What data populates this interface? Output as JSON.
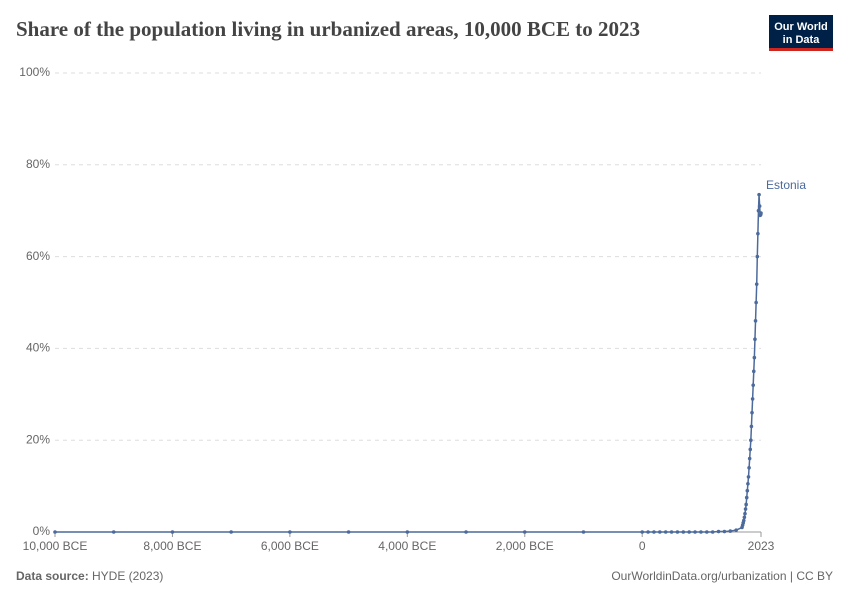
{
  "chart_data": {
    "type": "line",
    "title": "Share of the population living in urbanized areas, 10,000 BCE to 2023",
    "x": [
      -10000,
      -9000,
      -8000,
      -7000,
      -6000,
      -5000,
      -4000,
      -3000,
      -2000,
      -1000,
      0,
      100,
      200,
      300,
      400,
      500,
      600,
      700,
      800,
      900,
      1000,
      1100,
      1200,
      1300,
      1400,
      1500,
      1600,
      1700,
      1710,
      1720,
      1730,
      1740,
      1750,
      1760,
      1770,
      1780,
      1790,
      1800,
      1810,
      1820,
      1830,
      1840,
      1850,
      1860,
      1870,
      1880,
      1890,
      1900,
      1910,
      1920,
      1930,
      1940,
      1950,
      1960,
      1970,
      1980,
      1990,
      2000,
      2010,
      2020,
      2023
    ],
    "series": [
      {
        "name": "Estonia",
        "color": "#4c6a9c",
        "values": [
          0,
          0,
          0,
          0,
          0,
          0,
          0,
          0,
          0,
          0,
          0,
          0,
          0,
          0,
          0,
          0,
          0,
          0,
          0,
          0,
          0,
          0,
          0,
          0.1,
          0.1,
          0.2,
          0.4,
          1.0,
          1.5,
          2,
          2.5,
          3.2,
          4,
          5,
          6,
          7.5,
          9,
          10.5,
          12,
          14,
          16,
          18,
          20,
          23,
          26,
          29,
          32,
          35,
          38,
          42,
          46,
          50,
          54,
          60,
          65,
          70,
          73.5,
          71,
          69,
          69.2,
          69.5
        ]
      }
    ],
    "xlim": [
      -10000,
      2023
    ],
    "xticks": [
      {
        "value": -10000,
        "label": "10,000 BCE"
      },
      {
        "value": -8000,
        "label": "8,000 BCE"
      },
      {
        "value": -6000,
        "label": "6,000 BCE"
      },
      {
        "value": -4000,
        "label": "4,000 BCE"
      },
      {
        "value": -2000,
        "label": "2,000 BCE"
      },
      0,
      2023
    ],
    "ylim": [
      0,
      100
    ],
    "yticks": [
      {
        "value": 0,
        "label": "0%"
      },
      {
        "value": 20,
        "label": "20%"
      },
      {
        "value": 40,
        "label": "40%"
      },
      {
        "value": 60,
        "label": "60%"
      },
      {
        "value": 80,
        "label": "80%"
      },
      {
        "value": 100,
        "label": "100%"
      }
    ],
    "grid": true,
    "source_label": "Data source:",
    "source": "HYDE (2023)",
    "credit": "OurWorldinData.org/urbanization | CC BY"
  },
  "logo": [
    "Our World",
    "in Data"
  ]
}
